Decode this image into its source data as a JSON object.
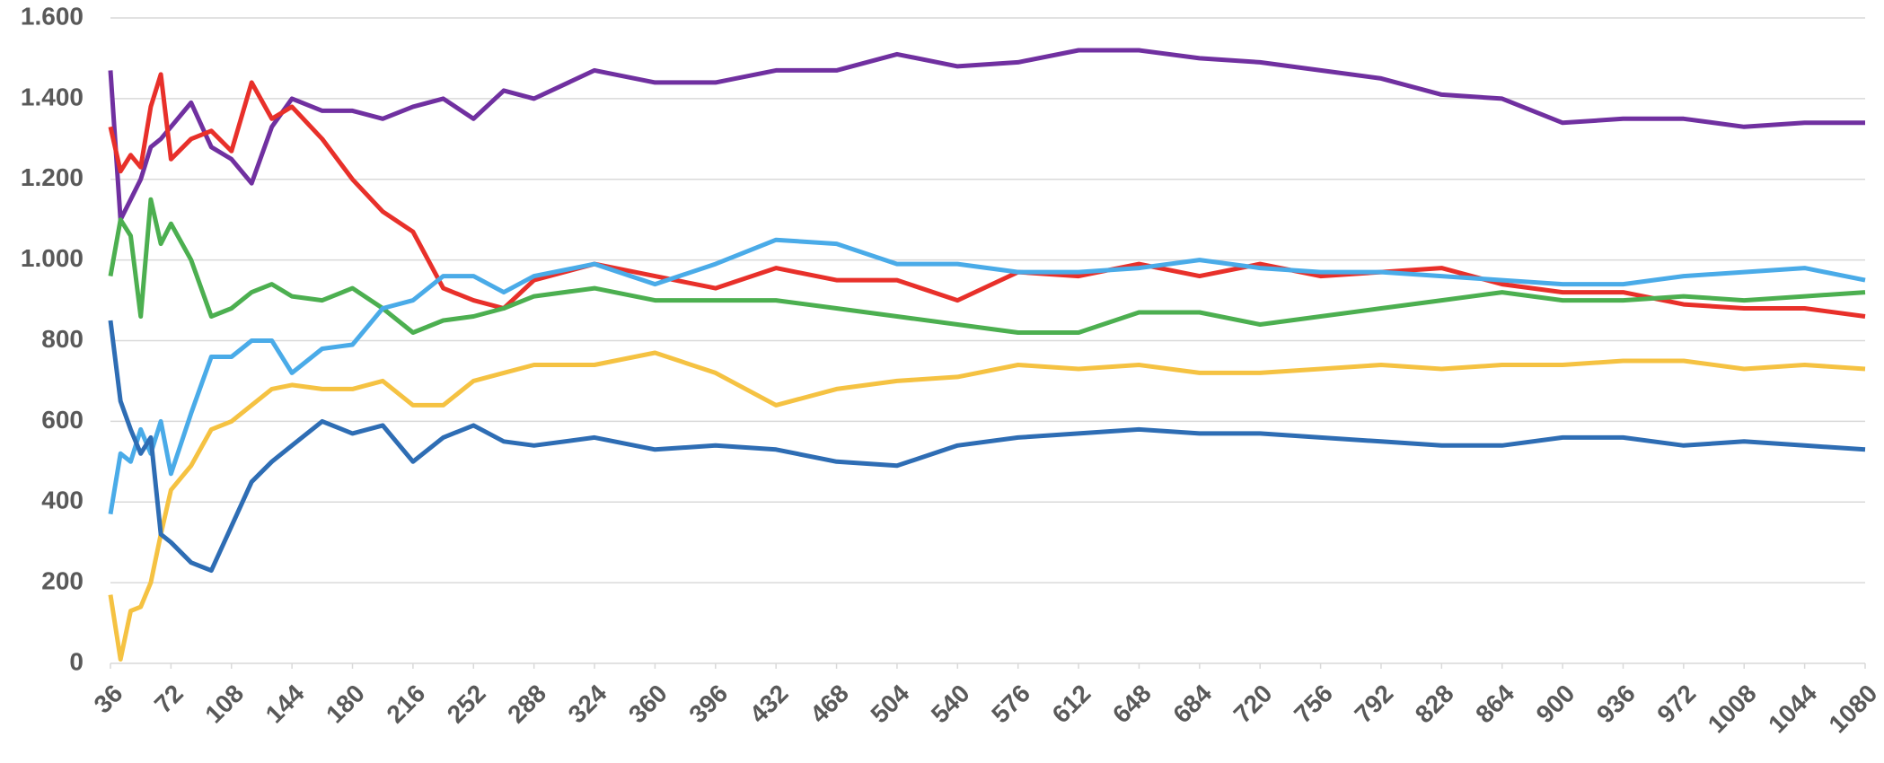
{
  "chart_data": {
    "type": "line",
    "x": [
      36,
      42,
      48,
      54,
      60,
      66,
      72,
      84,
      96,
      108,
      120,
      132,
      144,
      162,
      180,
      198,
      216,
      234,
      252,
      270,
      288,
      324,
      360,
      396,
      432,
      468,
      504,
      540,
      576,
      612,
      648,
      684,
      720,
      756,
      792,
      828,
      864,
      900,
      936,
      972,
      1008,
      1044,
      1080
    ],
    "series": [
      {
        "color": "#7030a0",
        "values": [
          1470,
          1100,
          1150,
          1200,
          1280,
          1300,
          1330,
          1390,
          1280,
          1250,
          1190,
          1330,
          1400,
          1370,
          1370,
          1350,
          1380,
          1400,
          1350,
          1420,
          1400,
          1470,
          1440,
          1440,
          1470,
          1470,
          1510,
          1480,
          1490,
          1520,
          1520,
          1500,
          1490,
          1470,
          1450,
          1410,
          1400,
          1340,
          1350,
          1350,
          1330,
          1340,
          1340
        ]
      },
      {
        "color": "#e8302a",
        "values": [
          1330,
          1220,
          1260,
          1230,
          1380,
          1460,
          1250,
          1300,
          1320,
          1270,
          1440,
          1350,
          1380,
          1300,
          1200,
          1120,
          1070,
          930,
          900,
          880,
          950,
          990,
          960,
          930,
          980,
          950,
          950,
          900,
          970,
          960,
          990,
          960,
          990,
          960,
          970,
          980,
          940,
          920,
          920,
          890,
          880,
          880,
          860
        ]
      },
      {
        "color": "#4caf50",
        "values": [
          960,
          1100,
          1060,
          860,
          1150,
          1040,
          1090,
          1000,
          860,
          880,
          920,
          940,
          910,
          900,
          930,
          880,
          820,
          850,
          860,
          880,
          910,
          930,
          900,
          900,
          900,
          880,
          860,
          840,
          820,
          820,
          870,
          870,
          840,
          860,
          880,
          900,
          920,
          900,
          900,
          910,
          900,
          910,
          920
        ]
      },
      {
        "color": "#4aabe8",
        "values": [
          370,
          520,
          500,
          580,
          520,
          600,
          470,
          620,
          760,
          760,
          800,
          800,
          720,
          780,
          790,
          880,
          900,
          960,
          960,
          920,
          960,
          990,
          940,
          990,
          1050,
          1040,
          990,
          990,
          970,
          970,
          980,
          1000,
          980,
          970,
          970,
          960,
          950,
          940,
          940,
          960,
          970,
          980,
          950
        ]
      },
      {
        "color": "#f5c242",
        "values": [
          170,
          10,
          130,
          140,
          200,
          320,
          430,
          490,
          580,
          600,
          640,
          680,
          690,
          680,
          680,
          700,
          640,
          640,
          700,
          720,
          740,
          740,
          770,
          720,
          640,
          680,
          700,
          710,
          740,
          730,
          740,
          720,
          720,
          730,
          740,
          730,
          740,
          740,
          750,
          750,
          730,
          740,
          730
        ]
      },
      {
        "color": "#2e6db4",
        "values": [
          850,
          650,
          580,
          520,
          560,
          320,
          300,
          250,
          230,
          340,
          450,
          500,
          540,
          600,
          570,
          590,
          500,
          560,
          590,
          550,
          540,
          560,
          530,
          540,
          530,
          500,
          490,
          540,
          560,
          570,
          580,
          570,
          570,
          560,
          550,
          540,
          540,
          560,
          560,
          540,
          550,
          540,
          530
        ]
      }
    ],
    "xlim": [
      36,
      1080
    ],
    "xticks": [
      36,
      72,
      108,
      144,
      180,
      216,
      252,
      288,
      324,
      360,
      396,
      432,
      468,
      504,
      540,
      576,
      612,
      648,
      684,
      720,
      756,
      792,
      828,
      864,
      900,
      936,
      972,
      1008,
      1044,
      1080
    ],
    "ylim": [
      0,
      1600
    ],
    "yticks": [
      0,
      200,
      400,
      600,
      800,
      {
        "value": 1000,
        "label": "1.000"
      },
      {
        "value": 1200,
        "label": "1.200"
      },
      {
        "value": 1400,
        "label": "1.400"
      },
      {
        "value": 1600,
        "label": "1.600"
      }
    ],
    "grid": true
  }
}
